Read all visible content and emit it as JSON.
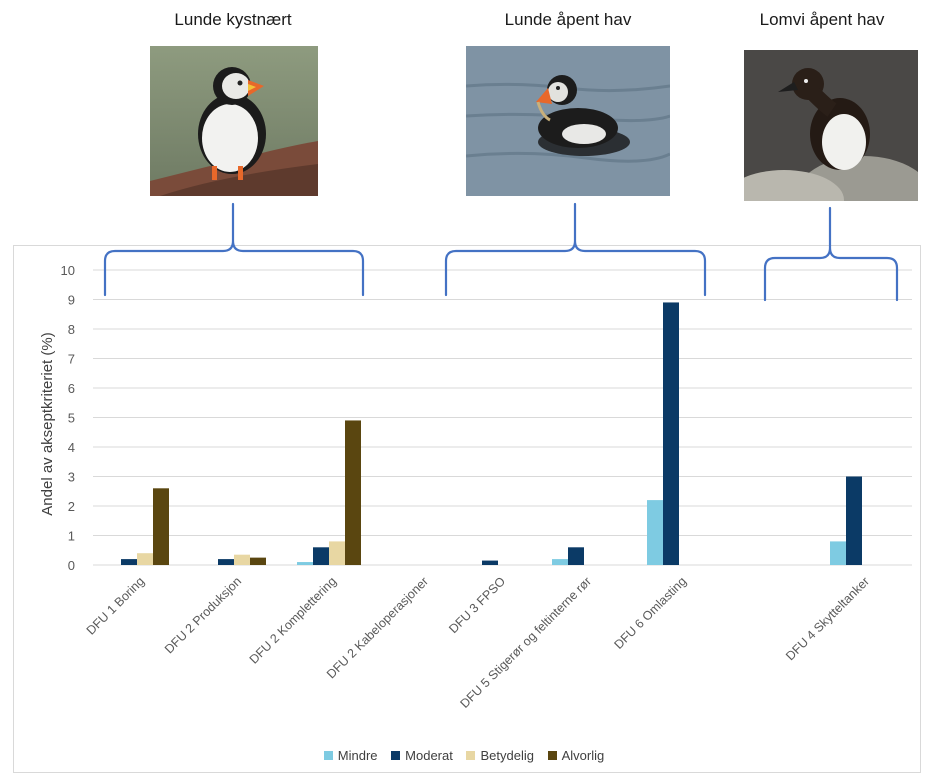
{
  "groups": [
    {
      "title": "Lunde kystnært",
      "bird": "atlantic-puffin-on-cliff"
    },
    {
      "title": "Lunde åpent hav",
      "bird": "atlantic-puffin-swimming"
    },
    {
      "title": "Lomvi åpent hav",
      "bird": "common-guillemot-on-rock"
    }
  ],
  "colors": {
    "Mindre": "#7ecbe2",
    "Moderat": "#0b3a66",
    "Betydelig": "#e8d7a3",
    "Alvorlig": "#5a4610",
    "bracket": "#4472c4",
    "grid": "#d9d9d9",
    "axis_text": "#595959"
  },
  "chart_data": {
    "type": "bar",
    "ylabel": "Andel av akseptkriteriet (%)",
    "ylim": [
      0,
      10
    ],
    "yticks": [
      0,
      1,
      2,
      3,
      4,
      5,
      6,
      7,
      8,
      9,
      10
    ],
    "grid": true,
    "legend_position": "bottom",
    "categories": [
      "DFU 1 Boring",
      "DFU 2 Produksjon",
      "DFU 2 Komplettering",
      "DFU 2 Kabeloperasjoner",
      "DFU 3 FPSO",
      "DFU 5 Stigerør og feltinterne rør",
      "DFU 6 Omlasting",
      "DFU 4 Skytteltanker"
    ],
    "series": [
      {
        "name": "Mindre",
        "values": [
          0,
          0,
          0.1,
          0,
          0,
          0.2,
          2.2,
          0.8
        ]
      },
      {
        "name": "Moderat",
        "values": [
          0.2,
          0.2,
          0.6,
          0,
          0.15,
          0.6,
          8.9,
          3.0
        ]
      },
      {
        "name": "Betydelig",
        "values": [
          0.4,
          0.35,
          0.8,
          0,
          0,
          0,
          0,
          0
        ]
      },
      {
        "name": "Alvorlig",
        "values": [
          2.6,
          0.25,
          4.9,
          0,
          0,
          0,
          0,
          0
        ]
      }
    ]
  }
}
